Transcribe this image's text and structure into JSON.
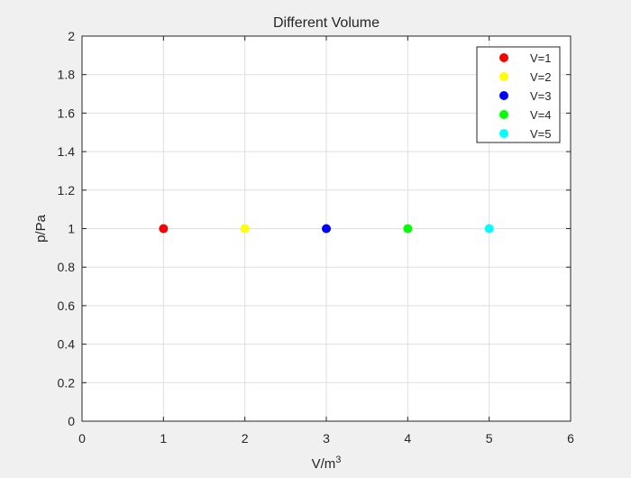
{
  "chart_data": {
    "type": "scatter",
    "title": "Different Volume",
    "xlabel": "V/m",
    "xlabel_sup": "3",
    "ylabel": "p/Pa",
    "xlim": [
      0,
      6
    ],
    "ylim": [
      0,
      2
    ],
    "xticks": [
      0,
      1,
      2,
      3,
      4,
      5,
      6
    ],
    "xtick_labels": [
      "0",
      "1",
      "2",
      "3",
      "4",
      "5",
      "6"
    ],
    "yticks": [
      0,
      0.2,
      0.4,
      0.6,
      0.8,
      1,
      1.2,
      1.4,
      1.6,
      1.8,
      2
    ],
    "ytick_labels": [
      "0",
      "0.2",
      "0.4",
      "0.6",
      "0.8",
      "1",
      "1.2",
      "1.4",
      "1.6",
      "1.8",
      "2"
    ],
    "grid": true,
    "legend_position": "top-right",
    "series": [
      {
        "name": "V=1",
        "color": "#ff0000",
        "x": [
          1
        ],
        "y": [
          1
        ]
      },
      {
        "name": "V=2",
        "color": "#ffff00",
        "x": [
          2
        ],
        "y": [
          1
        ]
      },
      {
        "name": "V=3",
        "color": "#0000ff",
        "x": [
          3
        ],
        "y": [
          1
        ]
      },
      {
        "name": "V=4",
        "color": "#00ff00",
        "x": [
          4
        ],
        "y": [
          1
        ]
      },
      {
        "name": "V=5",
        "color": "#00ffff",
        "x": [
          5
        ],
        "y": [
          1
        ]
      }
    ]
  }
}
